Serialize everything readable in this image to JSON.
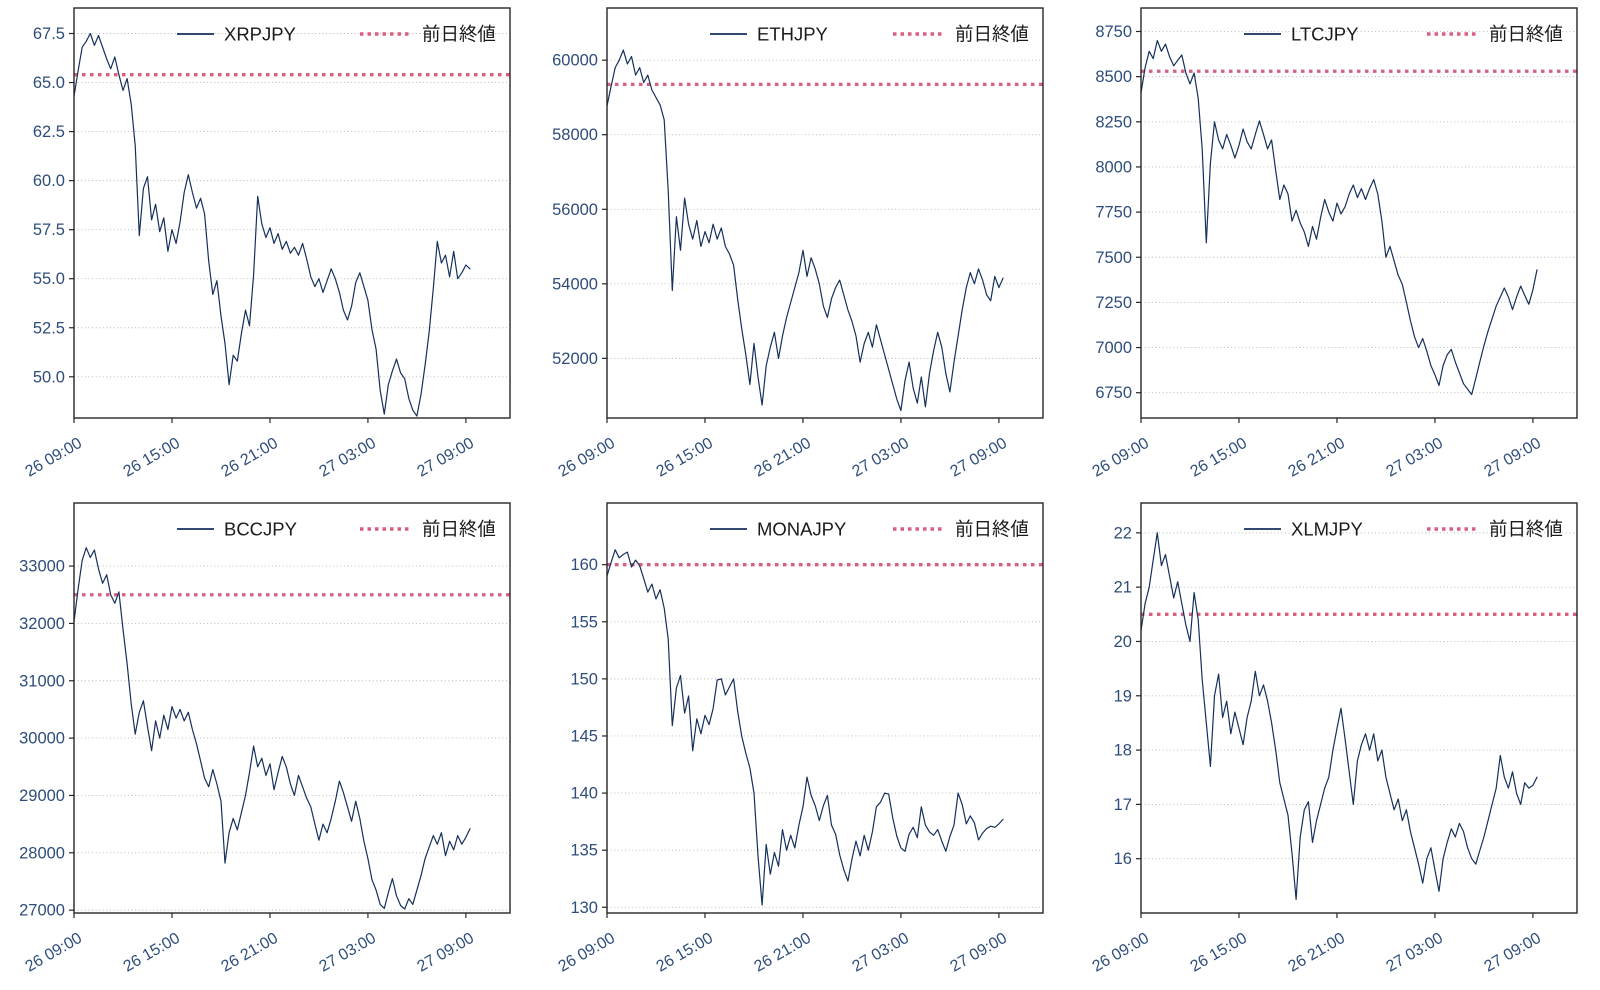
{
  "page": {
    "background": "#ffffff"
  },
  "style": {
    "series_color": "#15305d",
    "prev_close_color": "#d85f80",
    "tick_label_color": "#2e4d7b",
    "legend_text_color": "#1a1a1a",
    "grid_color": "#b5b5b5",
    "spine_color": "#262626"
  },
  "legend": {
    "prev_close_label": "前日終値"
  },
  "x_axis": {
    "tick_hours": [
      0,
      6,
      12,
      18,
      24
    ],
    "tick_labels": [
      "26 09:00",
      "26 15:00",
      "26 21:00",
      "27 03:00",
      "27 09:00"
    ],
    "xlim": [
      0,
      26.7
    ],
    "t_start": 0,
    "t_step": 0.25
  },
  "chart_data": [
    {
      "type": "line",
      "name": "XRPJPY",
      "prev_close": 65.4,
      "ylim": [
        47.9,
        68.8
      ],
      "ytick_values": [
        50,
        52.5,
        55,
        57.5,
        60,
        62.5,
        65,
        67.5
      ],
      "ytick_labels": [
        "50.0",
        "52.5",
        "55.0",
        "57.5",
        "60.0",
        "62.5",
        "65.0",
        "67.5"
      ],
      "values": [
        64.3,
        65.6,
        66.8,
        67.1,
        67.5,
        66.9,
        67.4,
        66.8,
        66.2,
        65.7,
        66.3,
        65.4,
        64.6,
        65.2,
        63.9,
        61.8,
        57.2,
        59.6,
        60.2,
        58.0,
        58.8,
        57.4,
        58.1,
        56.4,
        57.5,
        56.8,
        57.9,
        59.4,
        60.3,
        59.4,
        58.6,
        59.1,
        58.3,
        55.9,
        54.2,
        54.9,
        53.1,
        51.7,
        49.6,
        51.1,
        50.8,
        52.2,
        53.4,
        52.6,
        55.2,
        59.2,
        57.8,
        57.1,
        57.6,
        56.8,
        57.3,
        56.5,
        56.9,
        56.3,
        56.6,
        56.2,
        56.8,
        56.0,
        55.1,
        54.6,
        55.0,
        54.3,
        54.9,
        55.5,
        55.0,
        54.3,
        53.4,
        52.9,
        53.6,
        54.8,
        55.3,
        54.6,
        53.9,
        52.4,
        51.4,
        49.3,
        48.1,
        49.6,
        50.3,
        50.9,
        50.2,
        49.9,
        48.9,
        48.3,
        48.0,
        49.1,
        50.6,
        52.3,
        54.5,
        56.9,
        55.8,
        56.2,
        55.1,
        56.4,
        55.0,
        55.3,
        55.7,
        55.5
      ]
    },
    {
      "type": "line",
      "name": "ETHJPY",
      "prev_close": 59350,
      "ylim": [
        50400,
        61400
      ],
      "ytick_values": [
        52000,
        54000,
        56000,
        58000,
        60000
      ],
      "ytick_labels": [
        "52000",
        "54000",
        "56000",
        "58000",
        "60000"
      ],
      "values": [
        58770,
        59300,
        59800,
        60000,
        60270,
        59900,
        60100,
        59600,
        59800,
        59400,
        59600,
        59200,
        59000,
        58800,
        58400,
        56500,
        53820,
        55800,
        54900,
        56300,
        55600,
        55200,
        55700,
        55000,
        55400,
        55100,
        55600,
        55200,
        55500,
        55000,
        54800,
        54500,
        53600,
        52800,
        52100,
        51300,
        52400,
        51500,
        50750,
        51800,
        52300,
        52700,
        52000,
        52600,
        53100,
        53500,
        53900,
        54300,
        54900,
        54200,
        54700,
        54400,
        54000,
        53400,
        53100,
        53600,
        53900,
        54100,
        53700,
        53300,
        53000,
        52600,
        51900,
        52400,
        52700,
        52300,
        52900,
        52500,
        52100,
        51700,
        51300,
        50900,
        50600,
        51400,
        51900,
        51200,
        50800,
        51500,
        50700,
        51600,
        52200,
        52700,
        52300,
        51600,
        51100,
        51900,
        52600,
        53300,
        53900,
        54300,
        54000,
        54400,
        54100,
        53700,
        53550,
        54200,
        53900,
        54150
      ]
    },
    {
      "type": "line",
      "name": "LTCJPY",
      "prev_close": 8530,
      "ylim": [
        6610,
        8880
      ],
      "ytick_values": [
        6750,
        7000,
        7250,
        7500,
        7750,
        8000,
        8250,
        8500,
        8750
      ],
      "ytick_labels": [
        "6750",
        "7000",
        "7250",
        "7500",
        "7750",
        "8000",
        "8250",
        "8500",
        "8750"
      ],
      "values": [
        8410,
        8550,
        8640,
        8600,
        8700,
        8640,
        8680,
        8610,
        8560,
        8590,
        8620,
        8520,
        8460,
        8520,
        8380,
        8100,
        7580,
        8020,
        8250,
        8150,
        8100,
        8180,
        8120,
        8050,
        8120,
        8210,
        8140,
        8100,
        8180,
        8255,
        8180,
        8100,
        8150,
        7980,
        7820,
        7900,
        7850,
        7700,
        7760,
        7690,
        7640,
        7560,
        7670,
        7600,
        7720,
        7820,
        7750,
        7700,
        7800,
        7740,
        7780,
        7850,
        7900,
        7830,
        7880,
        7820,
        7880,
        7930,
        7850,
        7700,
        7500,
        7560,
        7480,
        7400,
        7350,
        7250,
        7150,
        7060,
        7000,
        7050,
        6980,
        6900,
        6850,
        6790,
        6900,
        6960,
        6990,
        6920,
        6860,
        6800,
        6770,
        6740,
        6830,
        6920,
        7010,
        7090,
        7160,
        7230,
        7280,
        7330,
        7280,
        7210,
        7280,
        7340,
        7290,
        7240,
        7320,
        7430
      ]
    },
    {
      "type": "line",
      "name": "BCCJPY",
      "prev_close": 32500,
      "ylim": [
        26950,
        34100
      ],
      "ytick_values": [
        27000,
        28000,
        29000,
        30000,
        31000,
        32000,
        33000
      ],
      "ytick_labels": [
        "27000",
        "28000",
        "29000",
        "30000",
        "31000",
        "32000",
        "33000"
      ],
      "values": [
        32030,
        32600,
        33100,
        33320,
        33150,
        33280,
        32950,
        32700,
        32850,
        32500,
        32350,
        32550,
        31900,
        31300,
        30600,
        30070,
        30450,
        30650,
        30200,
        29780,
        30300,
        30000,
        30400,
        30150,
        30550,
        30350,
        30500,
        30300,
        30450,
        30150,
        29900,
        29600,
        29300,
        29150,
        29450,
        29200,
        28900,
        27820,
        28350,
        28600,
        28400,
        28700,
        29000,
        29400,
        29860,
        29500,
        29650,
        29350,
        29550,
        29100,
        29400,
        29680,
        29500,
        29200,
        29000,
        29350,
        29150,
        28950,
        28800,
        28500,
        28220,
        28500,
        28350,
        28600,
        28900,
        29250,
        29050,
        28800,
        28550,
        28900,
        28600,
        28200,
        27900,
        27530,
        27350,
        27100,
        27030,
        27300,
        27550,
        27250,
        27080,
        27020,
        27200,
        27100,
        27350,
        27600,
        27900,
        28100,
        28300,
        28150,
        28350,
        27950,
        28200,
        28050,
        28300,
        28150,
        28270,
        28420
      ]
    },
    {
      "type": "line",
      "name": "MONAJPY",
      "prev_close": 160.0,
      "ylim": [
        129.5,
        165.4
      ],
      "ytick_values": [
        130,
        135,
        140,
        145,
        150,
        155,
        160
      ],
      "ytick_labels": [
        "130",
        "135",
        "140",
        "145",
        "150",
        "155",
        "160"
      ],
      "values": [
        159.0,
        160.2,
        161.3,
        160.6,
        160.9,
        161.1,
        159.8,
        160.4,
        159.9,
        158.8,
        157.6,
        158.3,
        157.0,
        157.8,
        156.2,
        153.5,
        145.9,
        149.2,
        150.3,
        147.0,
        148.5,
        143.7,
        146.5,
        145.2,
        146.8,
        146.0,
        147.4,
        149.9,
        150.0,
        148.6,
        149.3,
        150.0,
        147.2,
        145.0,
        143.5,
        142.2,
        140.0,
        134.5,
        130.2,
        135.5,
        132.9,
        134.8,
        133.6,
        136.8,
        135.0,
        136.3,
        135.2,
        137.2,
        138.8,
        141.4,
        139.8,
        138.9,
        137.6,
        138.9,
        139.8,
        137.2,
        136.4,
        134.6,
        133.3,
        132.3,
        134.2,
        135.8,
        134.5,
        136.3,
        135.0,
        136.6,
        138.8,
        139.2,
        140.0,
        139.9,
        137.8,
        136.2,
        135.2,
        134.9,
        136.4,
        137.0,
        136.1,
        138.8,
        137.2,
        136.6,
        136.3,
        136.8,
        135.8,
        134.9,
        136.2,
        137.2,
        140.0,
        139.0,
        137.3,
        138.0,
        137.4,
        135.9,
        136.5,
        136.9,
        137.1,
        137.0,
        137.3,
        137.7
      ]
    },
    {
      "type": "line",
      "name": "XLMJPY",
      "prev_close": 20.5,
      "ylim": [
        15.0,
        22.55
      ],
      "ytick_values": [
        16,
        17,
        18,
        19,
        20,
        21,
        22
      ],
      "ytick_labels": [
        "16",
        "17",
        "18",
        "19",
        "20",
        "21",
        "22"
      ],
      "values": [
        20.2,
        20.7,
        21.0,
        21.5,
        22.0,
        21.4,
        21.6,
        21.2,
        20.8,
        21.1,
        20.7,
        20.3,
        20.0,
        20.9,
        20.4,
        19.3,
        18.5,
        17.7,
        19.0,
        19.4,
        18.6,
        18.9,
        18.3,
        18.7,
        18.4,
        18.1,
        18.6,
        18.9,
        19.45,
        19.0,
        19.2,
        18.9,
        18.5,
        18.0,
        17.4,
        17.1,
        16.8,
        16.1,
        15.25,
        16.4,
        16.9,
        17.05,
        16.3,
        16.7,
        17.0,
        17.3,
        17.5,
        18.0,
        18.4,
        18.77,
        18.2,
        17.6,
        17.0,
        17.8,
        18.1,
        18.3,
        18.0,
        18.3,
        17.8,
        18.0,
        17.5,
        17.2,
        16.9,
        17.1,
        16.7,
        16.9,
        16.5,
        16.2,
        15.9,
        15.55,
        16.0,
        16.2,
        15.8,
        15.4,
        16.0,
        16.3,
        16.55,
        16.4,
        16.65,
        16.5,
        16.2,
        16.0,
        15.9,
        16.15,
        16.4,
        16.7,
        17.0,
        17.3,
        17.9,
        17.5,
        17.3,
        17.6,
        17.2,
        17.0,
        17.4,
        17.3,
        17.35,
        17.5
      ]
    }
  ]
}
